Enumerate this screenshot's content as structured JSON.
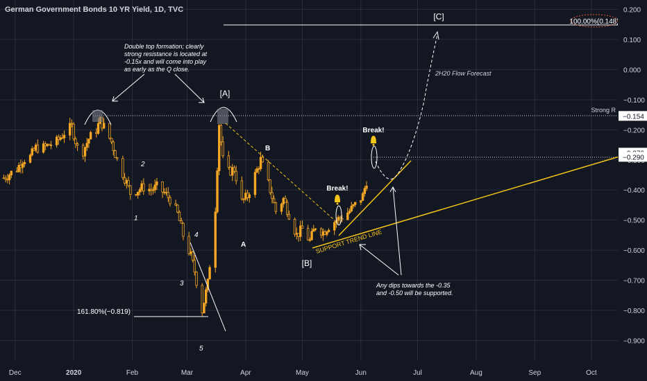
{
  "header": {
    "title": "German Government Bonds 10 YR Yield, 1D, TVC"
  },
  "colors": {
    "background": "#131722",
    "candle": "#f5a623",
    "text": "#d1d4dc",
    "gridline": "#2a2e39",
    "trendline": "#f5c518",
    "annotation": "#ffffff",
    "price_tag_bg": "#ffffff",
    "price_tag_text": "#131722",
    "target_ellipse": "#e05a3a"
  },
  "chart_data": {
    "type": "candlestick",
    "title": "German Government Bonds 10 YR Yield, 1D, TVC",
    "ylim": [
      -0.93,
      0.21
    ],
    "y_ticks": [
      0.2,
      0.1,
      0.0,
      -0.1,
      -0.2,
      -0.3,
      -0.4,
      -0.5,
      -0.6,
      -0.7,
      -0.8,
      -0.9
    ],
    "y_tick_labels": [
      "0.200",
      "0.100",
      "0.000",
      "−0.100",
      "−0.200",
      "−0.300",
      "−0.400",
      "−0.500",
      "−0.600",
      "−0.700",
      "−0.800",
      "−0.900"
    ],
    "x_range": [
      "2019-11-23",
      "2020-10-15"
    ],
    "x_ticks": [
      {
        "date": "2019-12-01",
        "label": "Dec"
      },
      {
        "date": "2020-01-01",
        "label": "2020"
      },
      {
        "date": "2020-02-01",
        "label": "Feb"
      },
      {
        "date": "2020-03-01",
        "label": "Mar"
      },
      {
        "date": "2020-04-01",
        "label": "Apr"
      },
      {
        "date": "2020-05-01",
        "label": "May"
      },
      {
        "date": "2020-06-01",
        "label": "Jun"
      },
      {
        "date": "2020-07-01",
        "label": "Jul"
      },
      {
        "date": "2020-08-01",
        "label": "Aug"
      },
      {
        "date": "2020-09-01",
        "label": "Sep"
      },
      {
        "date": "2020-10-01",
        "label": "Oct"
      }
    ],
    "closes": [
      [
        "2019-11-25",
        -0.36
      ],
      [
        "2019-12-02",
        -0.33
      ],
      [
        "2019-12-05",
        -0.3
      ],
      [
        "2019-12-09",
        -0.29
      ],
      [
        "2019-12-12",
        -0.26
      ],
      [
        "2019-12-16",
        -0.26
      ],
      [
        "2019-12-19",
        -0.25
      ],
      [
        "2019-12-23",
        -0.24
      ],
      [
        "2019-12-27",
        -0.21
      ],
      [
        "2019-12-31",
        -0.19
      ],
      [
        "2020-01-03",
        -0.26
      ],
      [
        "2020-01-06",
        -0.27
      ],
      [
        "2020-01-09",
        -0.23
      ],
      [
        "2020-01-13",
        -0.2
      ],
      [
        "2020-01-15",
        -0.17
      ],
      [
        "2020-01-17",
        -0.19
      ],
      [
        "2020-01-21",
        -0.24
      ],
      [
        "2020-01-24",
        -0.3
      ],
      [
        "2020-01-28",
        -0.36
      ],
      [
        "2020-01-31",
        -0.41
      ],
      [
        "2020-02-04",
        -0.4
      ],
      [
        "2020-02-07",
        -0.39
      ],
      [
        "2020-02-11",
        -0.4
      ],
      [
        "2020-02-14",
        -0.39
      ],
      [
        "2020-02-18",
        -0.41
      ],
      [
        "2020-02-21",
        -0.43
      ],
      [
        "2020-02-25",
        -0.48
      ],
      [
        "2020-02-28",
        -0.55
      ],
      [
        "2020-03-03",
        -0.62
      ],
      [
        "2020-03-05",
        -0.67
      ],
      [
        "2020-03-09",
        -0.8
      ],
      [
        "2020-03-12",
        -0.71
      ],
      [
        "2020-03-16",
        -0.46
      ],
      [
        "2020-03-18",
        -0.18
      ],
      [
        "2020-03-20",
        -0.3
      ],
      [
        "2020-03-23",
        -0.34
      ],
      [
        "2020-03-26",
        -0.33
      ],
      [
        "2020-03-30",
        -0.44
      ],
      [
        "2020-04-02",
        -0.42
      ],
      [
        "2020-04-06",
        -0.35
      ],
      [
        "2020-04-09",
        -0.3
      ],
      [
        "2020-04-14",
        -0.4
      ],
      [
        "2020-04-17",
        -0.47
      ],
      [
        "2020-04-21",
        -0.43
      ],
      [
        "2020-04-24",
        -0.48
      ],
      [
        "2020-04-28",
        -0.55
      ],
      [
        "2020-05-01",
        -0.53
      ],
      [
        "2020-05-05",
        -0.57
      ],
      [
        "2020-05-08",
        -0.52
      ],
      [
        "2020-05-12",
        -0.54
      ],
      [
        "2020-05-15",
        -0.52
      ],
      [
        "2020-05-19",
        -0.5
      ],
      [
        "2020-05-22",
        -0.49
      ],
      [
        "2020-05-26",
        -0.47
      ],
      [
        "2020-05-29",
        -0.45
      ],
      [
        "2020-06-02",
        -0.42
      ],
      [
        "2020-06-04",
        -0.37
      ],
      [
        "2020-06-05",
        -0.29
      ]
    ],
    "horizontal_levels": [
      {
        "y": -0.154,
        "label": "Strong R",
        "tag": "−0.154"
      },
      {
        "y": -0.276,
        "tag": "−0.276",
        "label": ""
      },
      {
        "y": -0.29,
        "tag": "−0.290",
        "label": ""
      },
      {
        "y": 0.148,
        "label": "[C]",
        "tag": "100.00%(0.148)"
      },
      {
        "y": -0.819,
        "label": "161.80%(−0.819)"
      }
    ]
  },
  "annotations": {
    "double_top_note": [
      "Double top formation; clearly",
      "strong resistance is located at",
      "-0.15x and will come into play",
      "as early as the Q close."
    ],
    "forecast_label": "2H20 Flow Forecast",
    "support_label": "SUPPORT TREND LINE",
    "dips_note": [
      "Any dips towards the -0.35",
      "and -0.50 will be supported."
    ],
    "break_labels": [
      "Break!",
      "Break!"
    ],
    "wave_labels": [
      "1",
      "2",
      "3",
      "4",
      "5",
      "A",
      "B",
      "[A]",
      "B",
      "[B]"
    ]
  }
}
